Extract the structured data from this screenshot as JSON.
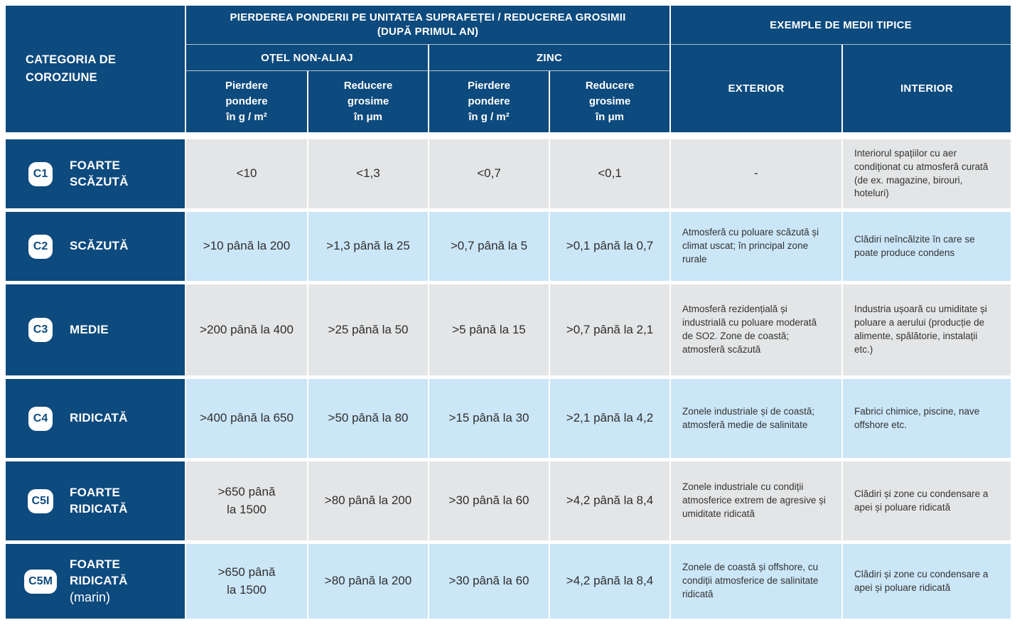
{
  "colors": {
    "navy": "#0d4a7e",
    "light_blue": "#cbe6f7",
    "gray": "#e4e5e6",
    "white": "#ffffff"
  },
  "header": {
    "category": "CATEGORIA DE\nCOROZIUNE",
    "group_loss": "PIERDEREA PONDERII PE UNITATEA SUPRAFEȚEI / REDUCEREA GROSIMII\n(DUPĂ PRIMUL AN)",
    "group_examples": "EXEMPLE DE MEDII TIPICE",
    "steel": "OȚEL NON-ALIAJ",
    "zinc": "ZINC",
    "weight_loss": "Pierdere\npondere\nîn g / m²",
    "thickness_reduction": "Reducere\ngrosime\nîn μm",
    "exterior": "EXTERIOR",
    "interior": "INTERIOR"
  },
  "rows": [
    {
      "code": "C1",
      "label": "FOARTE\nSCĂZUTĂ",
      "steel_weight": "<10",
      "steel_thickness": "<1,3",
      "zinc_weight": "<0,7",
      "zinc_thickness": "<0,1",
      "exterior": "-",
      "interior": "Interiorul spațiilor cu aer condiționat cu atmosferă curată (de ex. magazine, birouri, hoteluri)"
    },
    {
      "code": "C2",
      "label": "SCĂZUTĂ",
      "steel_weight": ">10 până la 200",
      "steel_thickness": ">1,3 până la 25",
      "zinc_weight": ">0,7 până la 5",
      "zinc_thickness": ">0,1 până la 0,7",
      "exterior": "Atmosferă cu poluare scăzută și climat uscat; în principal zone rurale",
      "interior": "Clădiri neîncălzite în care se poate produce condens"
    },
    {
      "code": "C3",
      "label": "MEDIE",
      "steel_weight": ">200 până la 400",
      "steel_thickness": ">25 până la 50",
      "zinc_weight": ">5 până la 15",
      "zinc_thickness": ">0,7 până la 2,1",
      "exterior": "Atmosferă rezidențială și industrială cu poluare moderată de SO2. Zone de coastă; atmosferă scăzută",
      "interior": "Industria ușoară cu umiditate și poluare a aerului (producție de alimente, spălătorie, instalații etc.)"
    },
    {
      "code": "C4",
      "label": "RIDICATĂ",
      "steel_weight": ">400 până la 650",
      "steel_thickness": ">50 până la 80",
      "zinc_weight": ">15 până la 30",
      "zinc_thickness": ">2,1 până la 4,2",
      "exterior": "Zonele industriale și de coastă; atmosferă medie de salinitate",
      "interior": "Fabrici chimice, piscine, nave offshore etc."
    },
    {
      "code": "C5I",
      "label": "FOARTE\nRIDICATĂ",
      "steel_weight": ">650 până\nla 1500",
      "steel_thickness": ">80 până la 200",
      "zinc_weight": ">30 până la 60",
      "zinc_thickness": ">4,2 până la 8,4",
      "exterior": "Zonele industriale cu condiții atmosferice extrem de agresive și umiditate ridicată",
      "interior": "Clădiri și zone cu condensare a apei și poluare ridicată"
    },
    {
      "code": "C5M",
      "label": "FOARTE\nRIDICATĂ",
      "label_suffix": "(marin)",
      "steel_weight": ">650 până\nla 1500",
      "steel_thickness": ">80 până la 200",
      "zinc_weight": ">30 până la 60",
      "zinc_thickness": ">4,2 până la 8,4",
      "exterior": "Zonele de coastă și offshore, cu condiții atmosferice de salinitate ridicată",
      "interior": "Clădiri și zone cu condensare a apei și poluare ridicată"
    }
  ]
}
